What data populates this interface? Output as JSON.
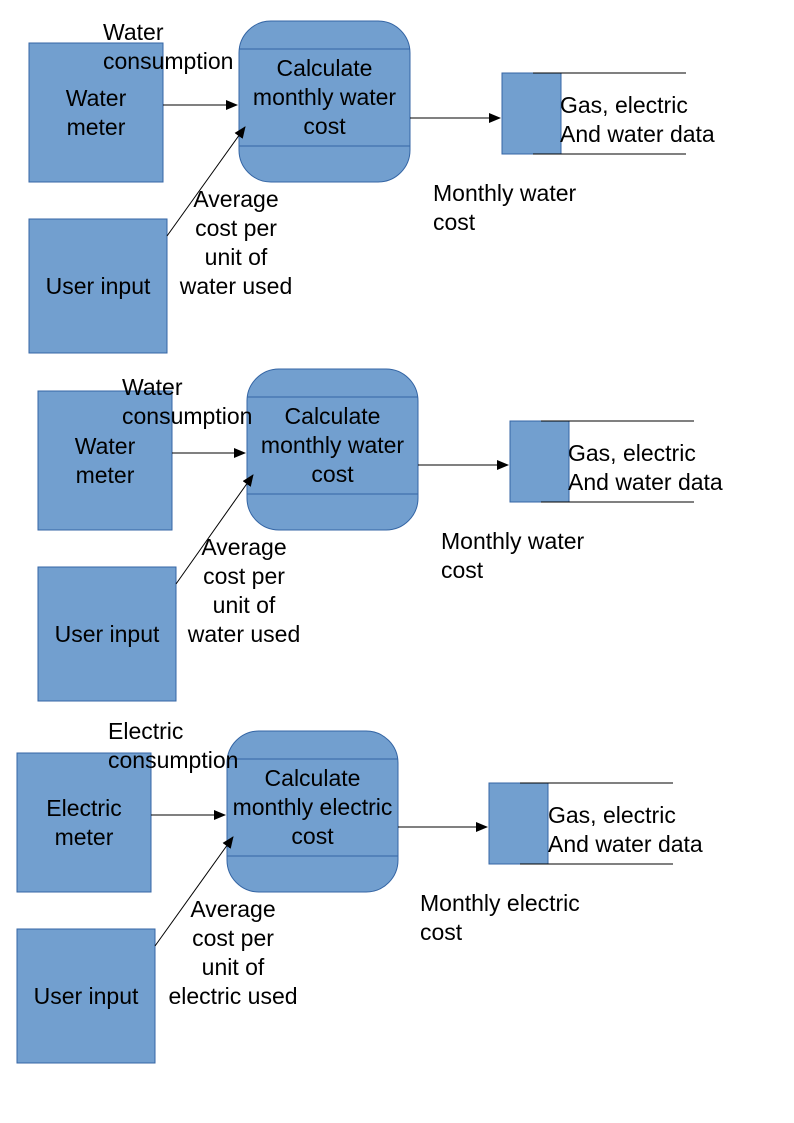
{
  "diagrams": [
    {
      "source_entity": "Water\nmeter",
      "input_entity": "User input",
      "process": "Calculate\nmonthly water\ncost",
      "consumption_flow": "Water\nconsumption",
      "cost_flow": "Average\ncost per\nunit of\nwater used",
      "output_flow": "Monthly water\ncost",
      "data_store": "Gas, electric\nAnd water data"
    },
    {
      "source_entity": "Water\nmeter",
      "input_entity": "User input",
      "process": "Calculate\nmonthly water\ncost",
      "consumption_flow": "Water\nconsumption",
      "cost_flow": "Average\ncost per\nunit of\nwater used",
      "output_flow": "Monthly water\ncost",
      "data_store": "Gas, electric\nAnd water data"
    },
    {
      "source_entity": "Electric\nmeter",
      "input_entity": "User input",
      "process": "Calculate\nmonthly electric\ncost",
      "consumption_flow": "Electric\nconsumption",
      "cost_flow": "Average\ncost per\nunit of\nelectric used",
      "output_flow": "Monthly electric\ncost",
      "data_store": "Gas, electric\nAnd water data"
    }
  ],
  "colors": {
    "fill": "#729fcf",
    "stroke": "#3465a4",
    "line": "#000000"
  }
}
